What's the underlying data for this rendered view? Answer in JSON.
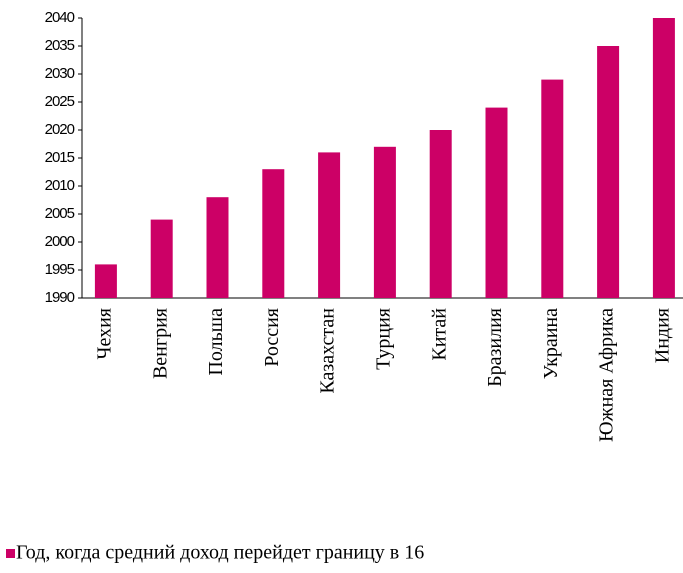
{
  "chart_data": {
    "type": "bar",
    "categories": [
      "Чехия",
      "Венгрия",
      "Польша",
      "Россия",
      "Казахстан",
      "Турция",
      "Китай",
      "Бразилия",
      "Украина",
      "Южная Африка",
      "Индия"
    ],
    "series": [
      {
        "name": "Год, когда средний доход перейдет границу в 16",
        "color": "#cc0066",
        "values": [
          1996,
          2004,
          2008,
          2013,
          2016,
          2017,
          2020,
          2024,
          2029,
          2035,
          2040
        ]
      }
    ],
    "ylim": [
      1990,
      2040
    ],
    "yticks": [
      1990,
      1995,
      2000,
      2005,
      2010,
      2015,
      2020,
      2025,
      2030,
      2035,
      2040
    ],
    "legend": "bottom"
  }
}
